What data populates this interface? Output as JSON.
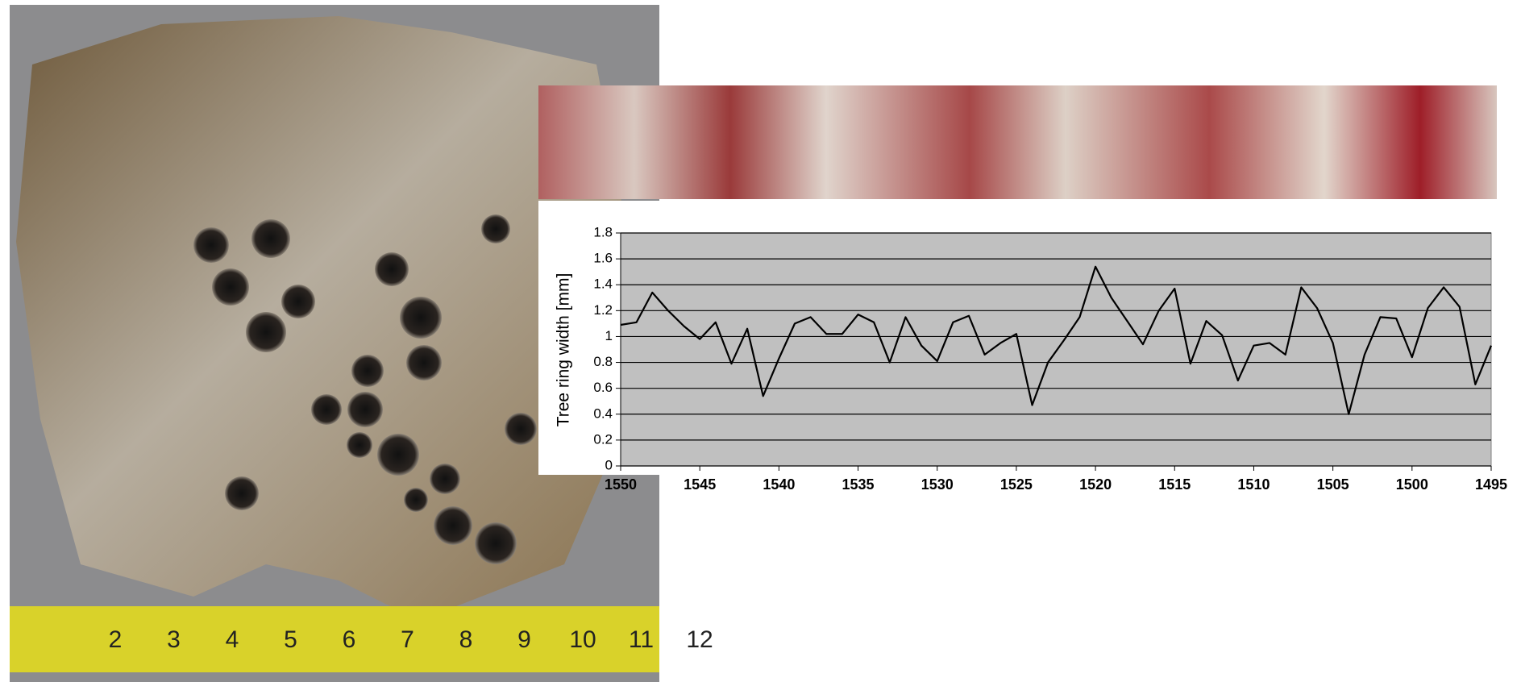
{
  "chart_data": {
    "type": "line",
    "y_label": "Tree ring width  [mm]",
    "x": [
      1550,
      1549,
      1548,
      1547,
      1546,
      1545,
      1544,
      1543,
      1542,
      1541,
      1540,
      1539,
      1538,
      1537,
      1536,
      1535,
      1534,
      1533,
      1532,
      1531,
      1530,
      1529,
      1528,
      1527,
      1526,
      1525,
      1524,
      1523,
      1522,
      1521,
      1520,
      1519,
      1518,
      1517,
      1516,
      1515,
      1514,
      1513,
      1512,
      1511,
      1510,
      1509,
      1508,
      1507,
      1506,
      1505,
      1504,
      1503,
      1502,
      1501,
      1500,
      1499,
      1498,
      1497,
      1496,
      1495
    ],
    "series": [
      {
        "color": "#000000",
        "values": [
          1.09,
          1.11,
          1.34,
          1.2,
          1.08,
          0.98,
          1.11,
          0.79,
          1.06,
          0.54,
          0.83,
          1.1,
          1.15,
          1.02,
          1.02,
          1.17,
          1.11,
          0.8,
          1.15,
          0.93,
          0.81,
          1.11,
          1.16,
          0.86,
          0.95,
          1.02,
          0.47,
          0.8,
          0.97,
          1.15,
          1.54,
          1.3,
          1.12,
          0.94,
          1.2,
          1.37,
          0.79,
          1.12,
          1.01,
          0.66,
          0.93,
          0.95,
          0.86,
          1.38,
          1.22,
          0.95,
          0.4,
          0.86,
          1.15,
          1.14,
          0.84,
          1.22,
          1.38,
          1.23,
          0.63,
          0.93
        ]
      }
    ],
    "xlim": [
      1550,
      1495
    ],
    "xticks": [
      1550,
      1545,
      1540,
      1535,
      1530,
      1525,
      1520,
      1515,
      1510,
      1505,
      1500,
      1495
    ],
    "ylim": [
      0,
      1.8
    ],
    "yticks": [
      0,
      0.2,
      0.4,
      0.6,
      0.8,
      1,
      1.2,
      1.4,
      1.6,
      1.8
    ],
    "grid": true
  },
  "photo": {
    "tape_labels": [
      "2",
      "3",
      "4",
      "5",
      "6",
      "7",
      "8",
      "9",
      "10",
      "11",
      "12"
    ]
  }
}
